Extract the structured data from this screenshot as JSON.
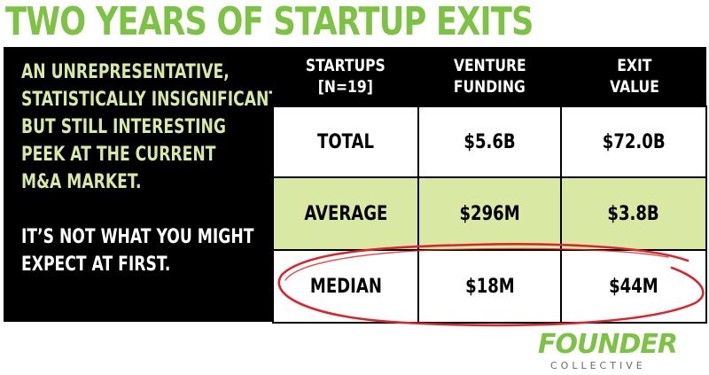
{
  "title": "TWO YEARS OF STARTUP EXITS",
  "intro": {
    "lines": [
      "AN UNREPRESENTATIVE,",
      "STATISTICALLY INSIGNIFICANT,",
      "BUT STILL INTERESTING",
      "PEEK AT THE CURRENT",
      "M&A MARKET."
    ],
    "note_lines": [
      "IT’S NOT WHAT YOU MIGHT",
      "EXPECT AT FIRST."
    ]
  },
  "table": {
    "headers": [
      {
        "line1": "STARTUPS",
        "line2": "[N=19]"
      },
      {
        "line1": "VENTURE",
        "line2": "FUNDING"
      },
      {
        "line1": "EXIT",
        "line2": "VALUE"
      }
    ],
    "rows": [
      {
        "label": "TOTAL",
        "funding": "$5.6B",
        "exit": "$72.0B"
      },
      {
        "label": "AVERAGE",
        "funding": "$296M",
        "exit": "$3.8B"
      },
      {
        "label": "MEDIAN",
        "funding": "$18M",
        "exit": "$44M"
      }
    ]
  },
  "colors": {
    "brand_green": "#7cc243",
    "highlight_row": "#d9e8a3",
    "circle_red": "#d8262e"
  },
  "logo": {
    "main": "FOUNDER",
    "sub": "COLLECTIVE"
  }
}
